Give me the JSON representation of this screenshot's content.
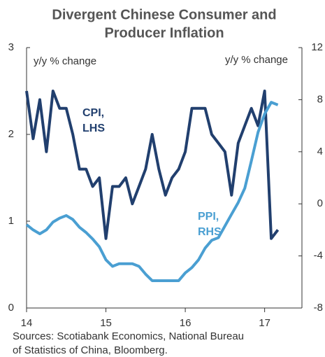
{
  "chart_data": {
    "type": "line",
    "title": [
      "Divergent Chinese Consumer and",
      "Producer Inflation"
    ],
    "y_label": "y/y % change",
    "y2_label": "y/y % change",
    "source": [
      "Sources: Scotiabank Economics, National Bureau",
      "of Statistics of China, Bloomberg."
    ],
    "xlim": [
      14,
      17.47
    ],
    "xticks": [
      14,
      15,
      16,
      17
    ],
    "ylim": [
      0,
      3
    ],
    "yticks": [
      0,
      1,
      2,
      3
    ],
    "y2lim": [
      -8,
      12
    ],
    "y2ticks": [
      -8,
      -4,
      0,
      4,
      8,
      12
    ],
    "x": [
      14,
      14.083,
      14.167,
      14.25,
      14.333,
      14.417,
      14.5,
      14.583,
      14.667,
      14.75,
      14.833,
      14.917,
      15,
      15.083,
      15.167,
      15.25,
      15.333,
      15.417,
      15.5,
      15.583,
      15.667,
      15.75,
      15.833,
      15.917,
      16,
      16.083,
      16.167,
      16.25,
      16.333,
      16.417,
      16.5,
      16.583,
      16.667,
      16.75,
      16.833,
      16.917,
      17,
      17.083,
      17.167
    ],
    "series": [
      {
        "name": [
          "CPI,",
          "LHS"
        ],
        "color": "#213f6e",
        "values": [
          2.5,
          1.95,
          2.4,
          1.8,
          2.5,
          2.3,
          2.3,
          2.0,
          1.6,
          1.6,
          1.4,
          1.5,
          0.8,
          1.4,
          1.4,
          1.5,
          1.2,
          1.4,
          1.6,
          2.0,
          1.6,
          1.3,
          1.5,
          1.6,
          1.8,
          2.3,
          2.3,
          2.3,
          2.0,
          1.9,
          1.8,
          1.3,
          1.9,
          2.1,
          2.3,
          2.1,
          2.5,
          0.8,
          0.9
        ]
      },
      {
        "name": [
          "PPI,",
          "RHS"
        ],
        "color": "#4a9fd2",
        "axis": "y2",
        "values": [
          -1.6,
          -2.0,
          -2.3,
          -2.0,
          -1.4,
          -1.1,
          -0.9,
          -1.2,
          -1.8,
          -2.2,
          -2.7,
          -3.3,
          -4.3,
          -4.8,
          -4.6,
          -4.6,
          -4.6,
          -4.8,
          -5.4,
          -5.9,
          -5.9,
          -5.9,
          -5.9,
          -5.9,
          -5.3,
          -4.9,
          -4.3,
          -3.4,
          -2.8,
          -2.6,
          -1.7,
          -0.8,
          0.1,
          1.2,
          3.3,
          5.5,
          6.9,
          7.8,
          7.6
        ]
      }
    ]
  }
}
